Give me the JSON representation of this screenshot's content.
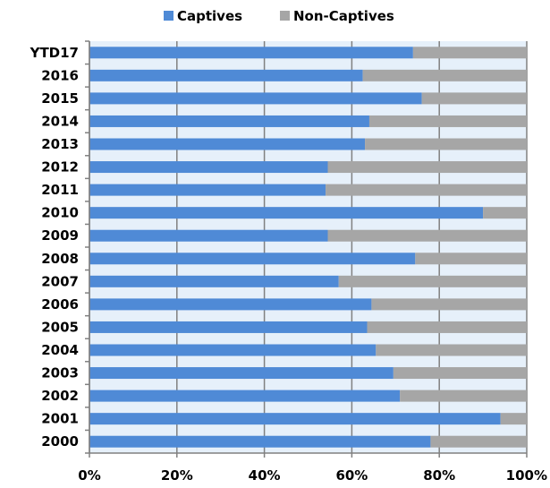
{
  "chart_data": {
    "type": "bar",
    "orientation": "horizontal",
    "stacked": "percent",
    "categories": [
      "YTD17",
      "2016",
      "2015",
      "2014",
      "2013",
      "2012",
      "2011",
      "2010",
      "2009",
      "2008",
      "2007",
      "2006",
      "2005",
      "2004",
      "2003",
      "2002",
      "2001",
      "2000"
    ],
    "series": [
      {
        "name": "Captives",
        "color": "#4f8ad6",
        "values": [
          74,
          62.5,
          76,
          64,
          63,
          54.5,
          54,
          90,
          54.5,
          74.5,
          57,
          64.5,
          63.5,
          65.5,
          69.5,
          71,
          94,
          78
        ]
      },
      {
        "name": "Non-Captives",
        "color": "#a6a6a6",
        "values": [
          26,
          37.5,
          24,
          36,
          37,
          45.5,
          46,
          10,
          45.5,
          25.5,
          43,
          35.5,
          36.5,
          34.5,
          30.5,
          29,
          6,
          22
        ]
      }
    ],
    "xlim": [
      0,
      100
    ],
    "xticks": [
      "0%",
      "20%",
      "40%",
      "60%",
      "80%",
      "100%"
    ],
    "xlabel": "",
    "ylabel": "",
    "legend_position": "top",
    "grid": "vertical",
    "plot_background": "#e6f0fa",
    "grid_color": "#808080"
  }
}
